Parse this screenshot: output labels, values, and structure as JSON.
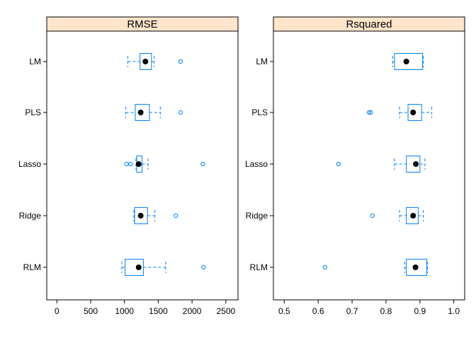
{
  "chart_data": [
    {
      "type": "box",
      "title": "RMSE",
      "categories": [
        "LM",
        "PLS",
        "Lasso",
        "Ridge",
        "RLM"
      ],
      "xlim": [
        -150,
        2680
      ],
      "ticks": [
        0,
        500,
        1000,
        1500,
        2000,
        2500
      ],
      "tick_labels": [
        "0",
        "500",
        "1000",
        "1500",
        "2000",
        "2500"
      ],
      "boxes": [
        {
          "name": "LM",
          "whisker_low": 1050,
          "q1": 1230,
          "median": 1310,
          "q3": 1400,
          "whisker_high": 1440,
          "outliers": [
            1830
          ]
        },
        {
          "name": "PLS",
          "whisker_low": 1020,
          "q1": 1160,
          "median": 1240,
          "q3": 1370,
          "whisker_high": 1530,
          "outliers": [
            1830
          ]
        },
        {
          "name": "Lasso",
          "whisker_low": 1170,
          "q1": 1180,
          "median": 1210,
          "q3": 1260,
          "whisker_high": 1350,
          "outliers": [
            1030,
            1090,
            2160
          ]
        },
        {
          "name": "Ridge",
          "whisker_low": 1140,
          "q1": 1150,
          "median": 1240,
          "q3": 1340,
          "whisker_high": 1450,
          "outliers": [
            1760
          ]
        },
        {
          "name": "RLM",
          "whisker_low": 960,
          "q1": 1010,
          "median": 1210,
          "q3": 1280,
          "whisker_high": 1610,
          "outliers": [
            2170
          ]
        }
      ]
    },
    {
      "type": "box",
      "title": "Rsquared",
      "categories": [
        "LM",
        "PLS",
        "Lasso",
        "Ridge",
        "RLM"
      ],
      "xlim": [
        0.468,
        1.032
      ],
      "ticks": [
        0.5,
        0.6,
        0.7,
        0.8,
        0.9,
        1.0
      ],
      "tick_labels": [
        "0.5",
        "0.6",
        "0.7",
        "0.8",
        "0.9",
        "1.0"
      ],
      "boxes": [
        {
          "name": "LM",
          "whisker_low": 0.82,
          "q1": 0.825,
          "median": 0.86,
          "q3": 0.908,
          "whisker_high": 0.91,
          "outliers": []
        },
        {
          "name": "PLS",
          "whisker_low": 0.84,
          "q1": 0.865,
          "median": 0.88,
          "q3": 0.905,
          "whisker_high": 0.935,
          "outliers": [
            0.75,
            0.755
          ]
        },
        {
          "name": "Lasso",
          "whisker_low": 0.825,
          "q1": 0.86,
          "median": 0.888,
          "q3": 0.9,
          "whisker_high": 0.915,
          "outliers": [
            0.66
          ]
        },
        {
          "name": "Ridge",
          "whisker_low": 0.84,
          "q1": 0.86,
          "median": 0.88,
          "q3": 0.895,
          "whisker_high": 0.91,
          "outliers": [
            0.76
          ]
        },
        {
          "name": "RLM",
          "whisker_low": 0.855,
          "q1": 0.86,
          "median": 0.887,
          "q3": 0.92,
          "whisker_high": 0.922,
          "outliers": [
            0.62
          ]
        }
      ]
    }
  ],
  "colors": {
    "strip_fill": "#ffe5cc",
    "frame": "#000000",
    "box": "#0080ff",
    "median": "#000000"
  }
}
